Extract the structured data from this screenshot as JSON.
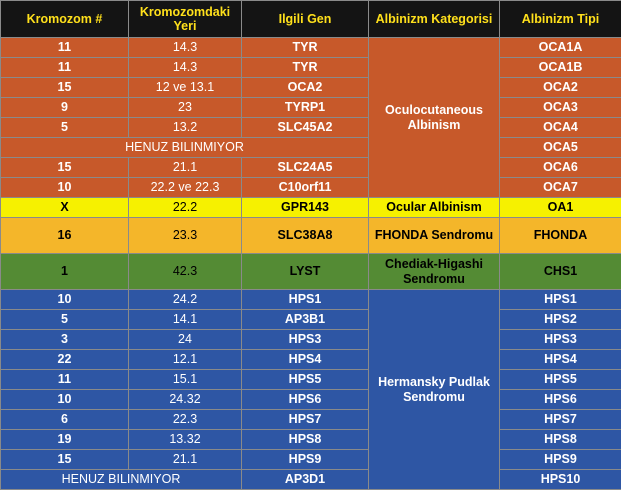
{
  "headers": [
    "Kromozom #",
    "Kromozomdaki Yeri",
    "Ilgili Gen",
    "Albinizm Kategorisi",
    "Albinizm Tipi"
  ],
  "colors": {
    "header_bg": "#141414",
    "header_text": "#ffe01b",
    "oca": "#c7592a",
    "ocular": "#f6f100",
    "fhonda": "#f4b62a",
    "chediak": "#548b34",
    "hps": "#2e56a4"
  },
  "categories": {
    "oca": "Oculocutaneous Albinism",
    "ocular": "Ocular Albinism",
    "fhonda": "FHONDA Sendromu",
    "chediak": "Chediak-Higashi Sendromu",
    "hps": "Hermansky Pudlak Sendromu"
  },
  "rows": [
    {
      "chrom": "11",
      "loc": "14.3",
      "gene": "TYR",
      "type": "OCA1A"
    },
    {
      "chrom": "11",
      "loc": "14.3",
      "gene": "TYR",
      "type": "OCA1B"
    },
    {
      "chrom": "15",
      "loc": "12 ve 13.1",
      "gene": "OCA2",
      "type": "OCA2"
    },
    {
      "chrom": "9",
      "loc": "23",
      "gene": "TYRP1",
      "type": "OCA3"
    },
    {
      "chrom": "5",
      "loc": "13.2",
      "gene": "SLC45A2",
      "type": "OCA4"
    },
    {
      "unknown": "HENUZ BILINMIYOR",
      "type": "OCA5"
    },
    {
      "chrom": "15",
      "loc": "21.1",
      "gene": "SLC24A5",
      "type": "OCA6"
    },
    {
      "chrom": "10",
      "loc": "22.2 ve 22.3",
      "gene": "C10orf11",
      "type": "OCA7"
    },
    {
      "chrom": "X",
      "loc": "22.2",
      "gene": "GPR143",
      "type": "OA1"
    },
    {
      "chrom": "16",
      "loc": "23.3",
      "gene": "SLC38A8",
      "type": "FHONDA"
    },
    {
      "chrom": "1",
      "loc": "42.3",
      "gene": "LYST",
      "type": "CHS1"
    },
    {
      "chrom": "10",
      "loc": "24.2",
      "gene": "HPS1",
      "type": "HPS1"
    },
    {
      "chrom": "5",
      "loc": "14.1",
      "gene": "AP3B1",
      "type": "HPS2"
    },
    {
      "chrom": "3",
      "loc": "24",
      "gene": "HPS3",
      "type": "HPS3"
    },
    {
      "chrom": "22",
      "loc": "12.1",
      "gene": "HPS4",
      "type": "HPS4"
    },
    {
      "chrom": "11",
      "loc": "15.1",
      "gene": "HPS5",
      "type": "HPS5"
    },
    {
      "chrom": "10",
      "loc": "24.32",
      "gene": "HPS6",
      "type": "HPS6"
    },
    {
      "chrom": "6",
      "loc": "22.3",
      "gene": "HPS7",
      "type": "HPS7"
    },
    {
      "chrom": "19",
      "loc": "13.32",
      "gene": "HPS8",
      "type": "HPS8"
    },
    {
      "chrom": "15",
      "loc": "21.1",
      "gene": "HPS9",
      "type": "HPS9"
    },
    {
      "unknown": "HENUZ BILINMIYOR",
      "gene": "AP3D1",
      "type": "HPS10"
    }
  ]
}
